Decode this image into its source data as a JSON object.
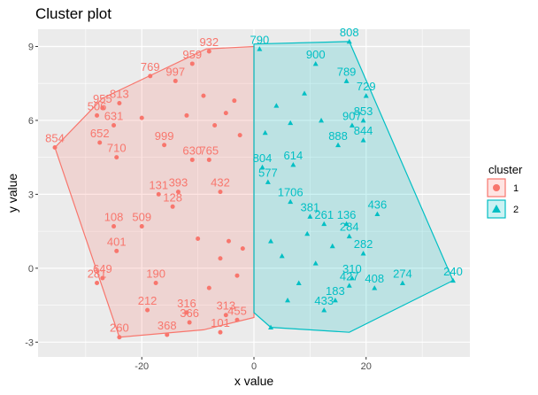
{
  "chart_data": {
    "type": "scatter",
    "title": "Cluster plot",
    "xlabel": "x value",
    "ylabel": "y value",
    "xlim": [
      -38.5,
      38.5
    ],
    "ylim": [
      -3.6,
      9.7
    ],
    "x_ticks": [
      -20,
      0,
      20
    ],
    "y_ticks": [
      -3,
      0,
      3,
      6,
      9
    ],
    "x_tick_labels": [
      "-20",
      "0",
      "20"
    ],
    "y_tick_labels": [
      "-3",
      "0",
      "3",
      "6",
      "9"
    ],
    "grid": true,
    "legend": {
      "title": "cluster",
      "position": "right"
    },
    "series": [
      {
        "name": "1",
        "color": "#F8766D",
        "marker": "circle",
        "hull": [
          [
            -35.5,
            4.9
          ],
          [
            -27.0,
            6.9
          ],
          [
            -8.5,
            8.9
          ],
          [
            0,
            9.0
          ],
          [
            0,
            -2.0
          ],
          [
            -9.0,
            -2.5
          ],
          [
            -24.0,
            -2.8
          ]
        ],
        "points": [
          {
            "x": -35.5,
            "y": 4.9,
            "label": "854"
          },
          {
            "x": -8.0,
            "y": 8.8,
            "label": "932"
          },
          {
            "x": -18.5,
            "y": 7.8,
            "label": "769"
          },
          {
            "x": -11.0,
            "y": 8.3,
            "label": "959"
          },
          {
            "x": -27.0,
            "y": 6.5,
            "label": "955"
          },
          {
            "x": -28.0,
            "y": 6.2,
            "label": "506"
          },
          {
            "x": -24.0,
            "y": 6.7,
            "label": "813"
          },
          {
            "x": -14.0,
            "y": 7.6,
            "label": "997"
          },
          {
            "x": -25.0,
            "y": 5.8,
            "label": "631"
          },
          {
            "x": -27.5,
            "y": 5.1,
            "label": "652"
          },
          {
            "x": -24.5,
            "y": 4.5,
            "label": "710"
          },
          {
            "x": -16.0,
            "y": 5.0,
            "label": "999"
          },
          {
            "x": -11.0,
            "y": 4.4,
            "label": "630"
          },
          {
            "x": -8.0,
            "y": 4.4,
            "label": "765"
          },
          {
            "x": -17.0,
            "y": 3.0,
            "label": "131"
          },
          {
            "x": -13.5,
            "y": 3.1,
            "label": "393"
          },
          {
            "x": -6.0,
            "y": 3.1,
            "label": "432"
          },
          {
            "x": -14.5,
            "y": 2.5,
            "label": "128"
          },
          {
            "x": -25.0,
            "y": 1.7,
            "label": "108"
          },
          {
            "x": -20.0,
            "y": 1.7,
            "label": "509"
          },
          {
            "x": -24.5,
            "y": 0.7,
            "label": "401"
          },
          {
            "x": -27.0,
            "y": -0.4,
            "label": "649"
          },
          {
            "x": -28.0,
            "y": -0.6,
            "label": "281"
          },
          {
            "x": -17.5,
            "y": -0.6,
            "label": "190"
          },
          {
            "x": -19.0,
            "y": -1.7,
            "label": "212"
          },
          {
            "x": -12.0,
            "y": -1.8,
            "label": "316"
          },
          {
            "x": -11.5,
            "y": -2.2,
            "label": "366"
          },
          {
            "x": -15.5,
            "y": -2.7,
            "label": "368"
          },
          {
            "x": -24.0,
            "y": -2.8,
            "label": "260"
          },
          {
            "x": -6.0,
            "y": -2.6,
            "label": "101"
          },
          {
            "x": -5.0,
            "y": -1.9,
            "label": "313"
          },
          {
            "x": -3.0,
            "y": -2.1,
            "label": "455"
          },
          {
            "x": -5.0,
            "y": 6.3,
            "label": ""
          },
          {
            "x": -3.5,
            "y": 6.8,
            "label": ""
          },
          {
            "x": -7.0,
            "y": 5.8,
            "label": ""
          },
          {
            "x": -2.5,
            "y": 5.4,
            "label": ""
          },
          {
            "x": -9.0,
            "y": 7.0,
            "label": ""
          },
          {
            "x": -6.0,
            "y": 0.4,
            "label": ""
          },
          {
            "x": -3.0,
            "y": -0.3,
            "label": ""
          },
          {
            "x": -8.0,
            "y": -0.8,
            "label": ""
          },
          {
            "x": -4.5,
            "y": 1.1,
            "label": ""
          },
          {
            "x": -2.0,
            "y": 0.8,
            "label": ""
          },
          {
            "x": -10.0,
            "y": 1.2,
            "label": ""
          },
          {
            "x": -12.0,
            "y": 6.2,
            "label": ""
          },
          {
            "x": -20.0,
            "y": 6.1,
            "label": ""
          }
        ]
      },
      {
        "name": "2",
        "color": "#00BFC4",
        "marker": "triangle",
        "hull": [
          [
            0,
            9.1
          ],
          [
            17.0,
            9.2
          ],
          [
            35.5,
            -0.5
          ],
          [
            17.0,
            -2.6
          ],
          [
            3.0,
            -2.4
          ],
          [
            0,
            -1.8
          ]
        ],
        "points": [
          {
            "x": 17.0,
            "y": 9.2,
            "label": "808"
          },
          {
            "x": 1.0,
            "y": 8.9,
            "label": "790"
          },
          {
            "x": 11.0,
            "y": 8.3,
            "label": "900"
          },
          {
            "x": 16.5,
            "y": 7.6,
            "label": "789"
          },
          {
            "x": 20.0,
            "y": 7.0,
            "label": "729"
          },
          {
            "x": 19.5,
            "y": 6.0,
            "label": "853"
          },
          {
            "x": 17.5,
            "y": 5.8,
            "label": "907"
          },
          {
            "x": 19.5,
            "y": 5.2,
            "label": "844"
          },
          {
            "x": 15.0,
            "y": 5.0,
            "label": "888"
          },
          {
            "x": 7.0,
            "y": 4.2,
            "label": "614"
          },
          {
            "x": 1.5,
            "y": 4.1,
            "label": "804"
          },
          {
            "x": 2.5,
            "y": 3.5,
            "label": "577"
          },
          {
            "x": 6.5,
            "y": 2.7,
            "label": "1706"
          },
          {
            "x": 10.0,
            "y": 2.1,
            "label": "381"
          },
          {
            "x": 12.5,
            "y": 1.8,
            "label": "261"
          },
          {
            "x": 16.5,
            "y": 1.8,
            "label": "136"
          },
          {
            "x": 22.0,
            "y": 2.2,
            "label": "436"
          },
          {
            "x": 17.0,
            "y": 1.3,
            "label": "284"
          },
          {
            "x": 19.5,
            "y": 0.6,
            "label": "282"
          },
          {
            "x": 17.5,
            "y": -0.4,
            "label": "310"
          },
          {
            "x": 17.0,
            "y": -0.7,
            "label": "427"
          },
          {
            "x": 21.5,
            "y": -0.8,
            "label": "408"
          },
          {
            "x": 26.5,
            "y": -0.6,
            "label": "274"
          },
          {
            "x": 14.5,
            "y": -1.3,
            "label": "183"
          },
          {
            "x": 12.5,
            "y": -1.7,
            "label": "433"
          },
          {
            "x": 35.5,
            "y": -0.5,
            "label": "240"
          },
          {
            "x": 3.0,
            "y": -2.4,
            "label": ""
          },
          {
            "x": 4.0,
            "y": 6.6,
            "label": ""
          },
          {
            "x": 6.5,
            "y": 5.9,
            "label": ""
          },
          {
            "x": 9.0,
            "y": 7.1,
            "label": ""
          },
          {
            "x": 12.0,
            "y": 6.0,
            "label": ""
          },
          {
            "x": 2.0,
            "y": 5.5,
            "label": ""
          },
          {
            "x": 5.0,
            "y": 0.5,
            "label": ""
          },
          {
            "x": 8.0,
            "y": -0.6,
            "label": ""
          },
          {
            "x": 3.0,
            "y": 1.1,
            "label": ""
          },
          {
            "x": 11.0,
            "y": 0.2,
            "label": ""
          },
          {
            "x": 14.0,
            "y": 0.9,
            "label": ""
          },
          {
            "x": 6.0,
            "y": -1.3,
            "label": ""
          },
          {
            "x": 9.5,
            "y": 1.4,
            "label": ""
          }
        ]
      }
    ]
  }
}
